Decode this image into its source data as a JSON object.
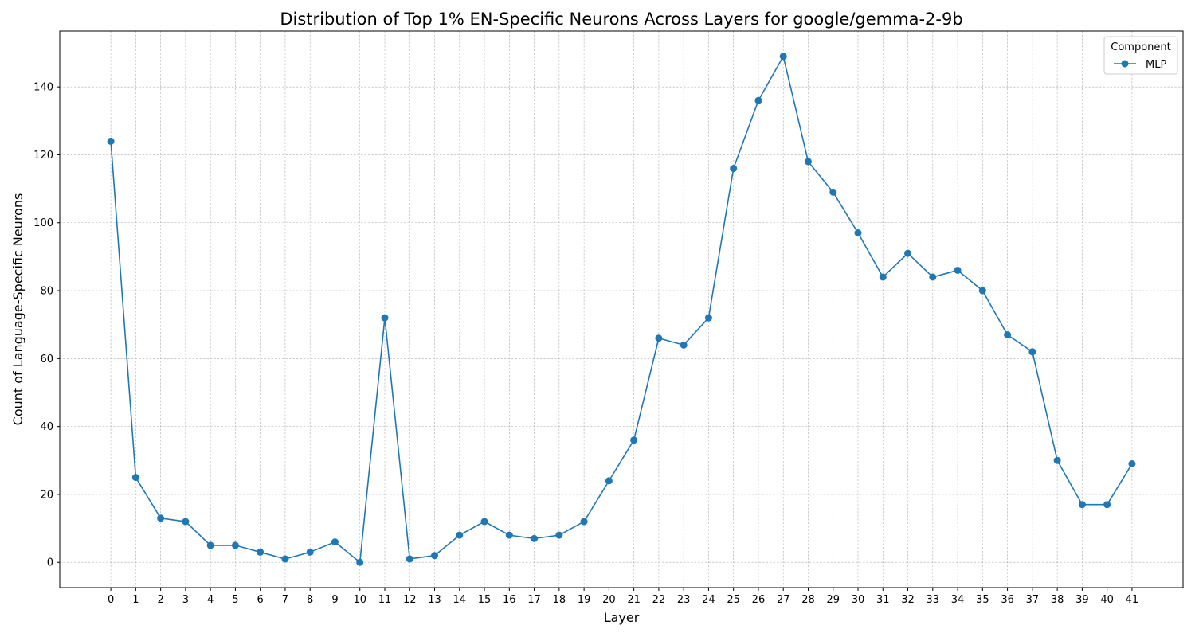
{
  "chart_data": {
    "type": "line",
    "title": "Distribution of Top 1% EN-Specific Neurons Across Layers for google/gemma-2-9b",
    "xlabel": "Layer",
    "ylabel": "Count of Language-Specific Neurons",
    "x": [
      0,
      1,
      2,
      3,
      4,
      5,
      6,
      7,
      8,
      9,
      10,
      11,
      12,
      13,
      14,
      15,
      16,
      17,
      18,
      19,
      20,
      21,
      22,
      23,
      24,
      25,
      26,
      27,
      28,
      29,
      30,
      31,
      32,
      33,
      34,
      35,
      36,
      37,
      38,
      39,
      40,
      41
    ],
    "series": [
      {
        "name": "MLP",
        "color": "#1f77b4",
        "marker": "circle",
        "values": [
          124,
          25,
          13,
          12,
          5,
          5,
          3,
          1,
          3,
          6,
          0,
          72,
          1,
          2,
          8,
          12,
          8,
          7,
          8,
          12,
          24,
          36,
          66,
          64,
          72,
          116,
          136,
          149,
          118,
          109,
          97,
          84,
          91,
          84,
          86,
          80,
          67,
          62,
          30,
          17,
          17,
          29
        ]
      }
    ],
    "xlim": [
      -2.05,
      43.05
    ],
    "ylim": [
      -7.45,
      156.45
    ],
    "yticks": [
      0,
      20,
      40,
      60,
      80,
      100,
      120,
      140
    ],
    "grid": true,
    "grid_color": "#b0b0b0",
    "legend": {
      "title": "Component",
      "position": "top-right"
    }
  }
}
